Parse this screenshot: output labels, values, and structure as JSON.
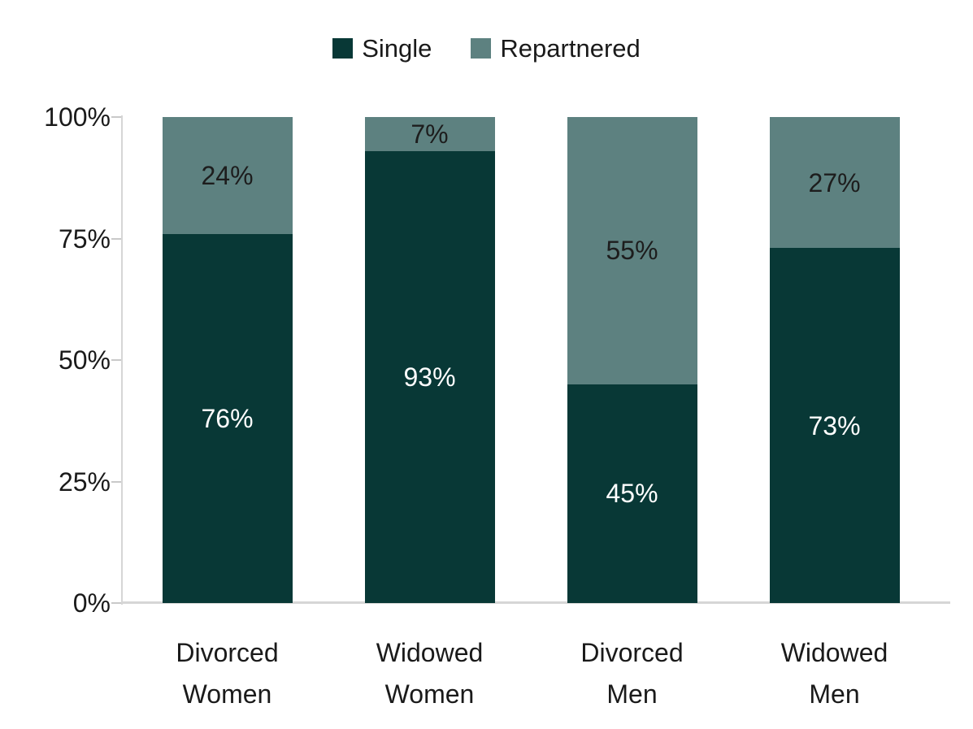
{
  "chart_data": {
    "type": "bar",
    "stacked": true,
    "orientation": "vertical",
    "title": "",
    "xlabel": "",
    "ylabel": "",
    "categories": [
      "Divorced Women",
      "Widowed Women",
      "Divorced Men",
      "Widowed Men"
    ],
    "series": [
      {
        "name": "Single",
        "values": [
          76,
          93,
          45,
          73
        ],
        "color": "#083836",
        "label_color": "#ffffff"
      },
      {
        "name": "Repartnered",
        "values": [
          24,
          7,
          55,
          27
        ],
        "color": "#5d8180",
        "label_color": "#1d1d1d"
      }
    ],
    "data_labels": true,
    "label_suffix": "%",
    "ylim": [
      0,
      100
    ],
    "yticks": [
      {
        "value": 0,
        "label": "0%"
      },
      {
        "value": 25,
        "label": "25%"
      },
      {
        "value": 50,
        "label": "50%"
      },
      {
        "value": 75,
        "label": "75%"
      },
      {
        "value": 100,
        "label": "100%"
      }
    ],
    "legend_position": "top",
    "grid": false,
    "axis_color": "#d6d6d6",
    "tick_color": "#c9c9c9",
    "text_color": "#1a1a1a",
    "background": "#ffffff"
  }
}
